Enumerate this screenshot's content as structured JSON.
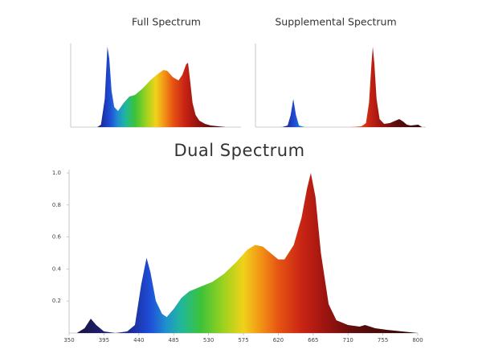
{
  "chart_data": [
    {
      "type": "area",
      "title": "Full Spectrum",
      "x": [
        350,
        400,
        420,
        430,
        440,
        447,
        452,
        458,
        465,
        475,
        490,
        505,
        520,
        540,
        560,
        580,
        595,
        605,
        620,
        635,
        645,
        655,
        660,
        665,
        672,
        680,
        690,
        705,
        720,
        740,
        760
      ],
      "values": [
        0,
        0,
        0,
        0.03,
        0.35,
        1.0,
        0.85,
        0.45,
        0.25,
        0.2,
        0.3,
        0.38,
        0.4,
        0.48,
        0.58,
        0.66,
        0.71,
        0.7,
        0.62,
        0.58,
        0.65,
        0.78,
        0.8,
        0.6,
        0.3,
        0.15,
        0.08,
        0.04,
        0.02,
        0.01,
        0
      ],
      "xlim": [
        350,
        800
      ],
      "ylim": [
        0,
        1
      ]
    },
    {
      "type": "area",
      "title": "Supplemental Spectrum",
      "x": [
        350,
        420,
        435,
        443,
        450,
        457,
        465,
        480,
        600,
        630,
        642,
        650,
        656,
        660,
        664,
        670,
        678,
        690,
        705,
        720,
        730,
        740,
        750,
        760,
        780,
        790
      ],
      "values": [
        0,
        0,
        0.02,
        0.15,
        0.35,
        0.15,
        0.02,
        0,
        0,
        0.01,
        0.05,
        0.3,
        0.75,
        1.0,
        0.8,
        0.35,
        0.1,
        0.04,
        0.05,
        0.08,
        0.1,
        0.07,
        0.03,
        0.02,
        0.03,
        0
      ],
      "xlim": [
        350,
        800
      ],
      "ylim": [
        0,
        1
      ]
    },
    {
      "type": "area",
      "title": "Dual Spectrum",
      "x": [
        360,
        370,
        378,
        385,
        395,
        410,
        425,
        435,
        443,
        450,
        455,
        462,
        470,
        476,
        485,
        495,
        505,
        520,
        535,
        550,
        565,
        580,
        590,
        600,
        610,
        620,
        628,
        640,
        650,
        657,
        662,
        668,
        675,
        685,
        695,
        710,
        725,
        732,
        745,
        760,
        780,
        800
      ],
      "values": [
        0,
        0.03,
        0.09,
        0.05,
        0.01,
        0,
        0.01,
        0.05,
        0.3,
        0.47,
        0.38,
        0.2,
        0.12,
        0.1,
        0.15,
        0.22,
        0.26,
        0.29,
        0.32,
        0.37,
        0.44,
        0.52,
        0.55,
        0.54,
        0.5,
        0.46,
        0.46,
        0.55,
        0.72,
        0.9,
        1.0,
        0.85,
        0.5,
        0.18,
        0.08,
        0.05,
        0.04,
        0.05,
        0.03,
        0.02,
        0.01,
        0
      ],
      "xlim": [
        350,
        800
      ],
      "xticks": [
        350,
        395,
        440,
        485,
        530,
        575,
        620,
        665,
        710,
        755,
        800
      ],
      "ylim": [
        0,
        1
      ],
      "yticks": [
        0.2,
        0.4,
        0.6,
        0.8,
        {
          "value": 1,
          "label": "1.0"
        }
      ]
    }
  ]
}
